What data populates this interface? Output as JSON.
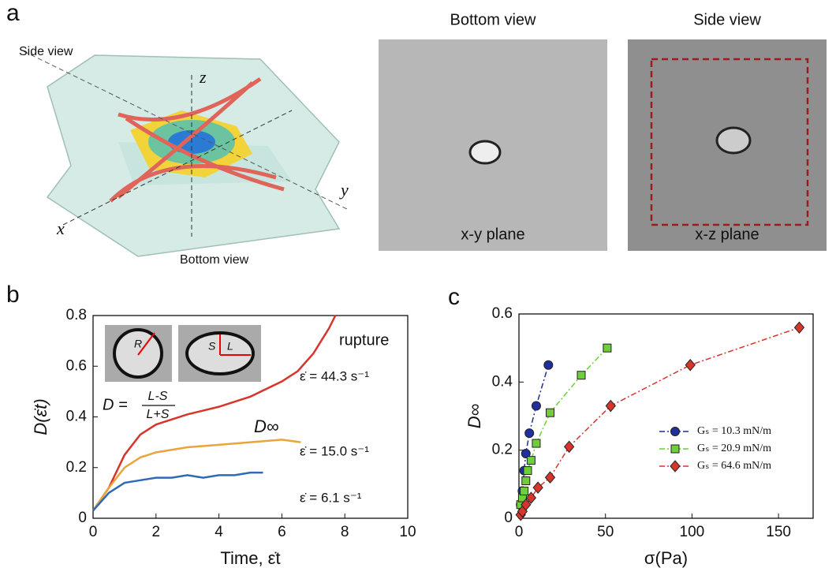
{
  "panel_labels": [
    "a",
    "b",
    "c"
  ],
  "panel_a": {
    "schematic": {
      "side_view": "Side view",
      "bottom_view": "Bottom view",
      "axis_z": "z",
      "axis_x": "x",
      "axis_y": "y"
    },
    "photos": [
      {
        "title": "Bottom view",
        "caption": "x-y plane"
      },
      {
        "title": "Side view",
        "caption": "x-z plane"
      }
    ]
  },
  "chart_data": [
    {
      "type": "line",
      "xlabel": "Time, ε̇t",
      "ylabel": "D(ε̇t)",
      "xlim": [
        0,
        10
      ],
      "ylim": [
        0,
        0.8
      ],
      "xticks": [
        0,
        2,
        4,
        6,
        8,
        10
      ],
      "yticks": [
        0,
        0.2,
        0.4,
        0.6,
        0.8
      ],
      "annotations": {
        "rupture": "rupture",
        "d_inf": "D∞",
        "formula_lhs": "D =",
        "formula_num": "L-S",
        "formula_den": "L+S",
        "inset_r": "R",
        "inset_s": "S",
        "inset_l": "L"
      },
      "series": [
        {
          "name": "ε̇ = 44.3 s⁻¹",
          "color": "#d7352c",
          "x": [
            0,
            0.5,
            1,
            1.5,
            2,
            3,
            4,
            5,
            6,
            6.5,
            7,
            7.5,
            7.7
          ],
          "values": [
            0.03,
            0.12,
            0.25,
            0.33,
            0.37,
            0.41,
            0.44,
            0.48,
            0.54,
            0.58,
            0.65,
            0.75,
            0.8
          ]
        },
        {
          "name": "ε̇ = 15.0 s⁻¹",
          "color": "#e9a53a",
          "x": [
            0,
            0.5,
            1,
            1.5,
            2,
            3,
            4,
            5,
            6,
            6.6
          ],
          "values": [
            0.03,
            0.12,
            0.2,
            0.24,
            0.26,
            0.28,
            0.29,
            0.3,
            0.31,
            0.3
          ]
        },
        {
          "name": "ε̇ = 6.1 s⁻¹",
          "color": "#2f6ab5",
          "x": [
            0,
            0.5,
            1,
            1.5,
            2,
            2.5,
            3,
            3.5,
            4,
            4.5,
            5,
            5.4
          ],
          "values": [
            0.03,
            0.1,
            0.14,
            0.15,
            0.16,
            0.16,
            0.17,
            0.16,
            0.17,
            0.17,
            0.18,
            0.18
          ]
        }
      ]
    },
    {
      "type": "scatter",
      "xlabel": "σ(Pa)",
      "ylabel": "D∞",
      "xlim": [
        0,
        170
      ],
      "ylim": [
        0,
        0.6
      ],
      "xticks": [
        0,
        50,
        100,
        150
      ],
      "yticks": [
        0,
        0.2,
        0.4,
        0.6
      ],
      "legend": "lower right",
      "series": [
        {
          "name": "Gₛ = 10.3 mN/m",
          "color": "#1f2f9e",
          "marker": "circle",
          "x": [
            1,
            2,
            3,
            4,
            6,
            10,
            17
          ],
          "values": [
            0.04,
            0.08,
            0.14,
            0.19,
            0.25,
            0.33,
            0.45
          ]
        },
        {
          "name": "Gₛ = 20.9 mN/m",
          "color": "#6fcf3a",
          "marker": "square",
          "x": [
            1,
            2,
            3,
            4,
            5,
            7,
            10,
            18,
            36,
            51
          ],
          "values": [
            0.04,
            0.06,
            0.08,
            0.11,
            0.14,
            0.17,
            0.22,
            0.31,
            0.42,
            0.5
          ]
        },
        {
          "name": "Gₛ = 64.6 mN/m",
          "color": "#d7352c",
          "marker": "diamond",
          "x": [
            1,
            2,
            4,
            7,
            11,
            18,
            29,
            53,
            99,
            162
          ],
          "values": [
            0.01,
            0.02,
            0.04,
            0.06,
            0.09,
            0.12,
            0.21,
            0.33,
            0.45,
            0.56
          ]
        }
      ]
    }
  ]
}
